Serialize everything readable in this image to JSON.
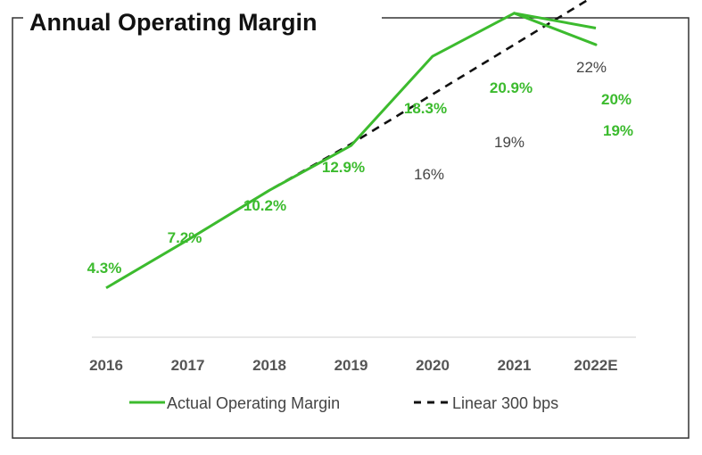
{
  "chart_data": {
    "type": "line",
    "title": "Annual Operating Margin",
    "categories": [
      "2016",
      "2017",
      "2018",
      "2019",
      "2020",
      "2021",
      "2022E"
    ],
    "series": [
      {
        "name": "Actual Operating Margin",
        "color": "#3cbb2e",
        "style": "solid",
        "values": [
          4.3,
          7.2,
          10.2,
          12.9,
          18.3,
          20.9,
          20
        ],
        "labels": [
          "4.3%",
          "7.2%",
          "10.2%",
          "12.9%",
          "18.3%",
          "20.9%",
          "20%"
        ],
        "alternate_2022E": {
          "value": 19,
          "label": "19%"
        }
      },
      {
        "name": "Linear 300 bps",
        "color": "#111111",
        "style": "dashed",
        "start_category": "2017",
        "values": [
          null,
          7.2,
          10.2,
          13,
          16,
          19,
          22
        ],
        "labels": [
          "",
          "",
          "",
          "",
          "16%",
          "19%",
          "22%"
        ]
      }
    ],
    "ylim": [
      0,
      24
    ],
    "xlabel": "",
    "ylabel": "",
    "grid": false,
    "legend_position": "bottom",
    "colors": {
      "actual": "#3cbb2e",
      "linear": "#111111",
      "axis": "#d9d9d9"
    }
  }
}
